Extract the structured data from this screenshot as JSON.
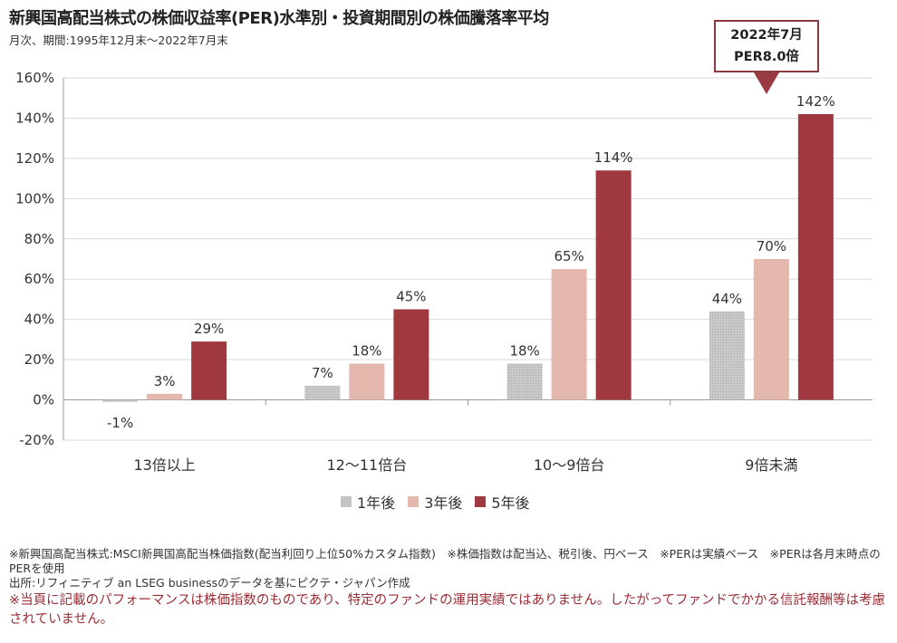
{
  "title": "新興国高配当株式の株価収益率(PER)水準別・投資期間別の株価騰落率平均",
  "subtitle": "月次、期間:1995年12月末～2022年7月末",
  "callout": {
    "line1": "2022年7月",
    "line2": "PER8.0倍"
  },
  "colors": {
    "series1": "#c4c4c4",
    "series2": "#e4b8ad",
    "series3": "#a0393f",
    "callout_border": "#8b3a3f"
  },
  "chart_data": {
    "type": "bar",
    "categories": [
      "13倍以上",
      "12～11倍台",
      "10～9倍台",
      "9倍未満"
    ],
    "series": [
      {
        "name": "1年後",
        "values": [
          -1,
          7,
          18,
          44
        ],
        "labels": [
          "-1%",
          "7%",
          "18%",
          "44%"
        ]
      },
      {
        "name": "3年後",
        "values": [
          3,
          18,
          65,
          70
        ],
        "labels": [
          "3%",
          "18%",
          "65%",
          "70%"
        ]
      },
      {
        "name": "5年後",
        "values": [
          29,
          45,
          114,
          142
        ],
        "labels": [
          "29%",
          "45%",
          "114%",
          "142%"
        ]
      }
    ],
    "yticks": [
      "160%",
      "140%",
      "120%",
      "100%",
      "80%",
      "60%",
      "40%",
      "20%",
      "0%",
      "-20%"
    ],
    "ylim": [
      -20,
      160
    ],
    "grid": true,
    "legend": "bottom-center"
  },
  "notes": {
    "line1": "※新興国高配当株式:MSCI新興国高配当株価指数(配当利回り上位50%カスタム指数)　※株価指数は配当込、税引後、円ベース　※PERは実績ベース　※PERは各月末時点のPERを使用",
    "line2": "出所:リフィニティブ an LSEG businessのデータを基にピクテ・ジャパン作成",
    "warning": "※当頁に記載のパフォーマンスは株価指数のものであり、特定のファンドの運用実績ではありません。したがってファンドでかかる信託報酬等は考慮されていません。"
  }
}
